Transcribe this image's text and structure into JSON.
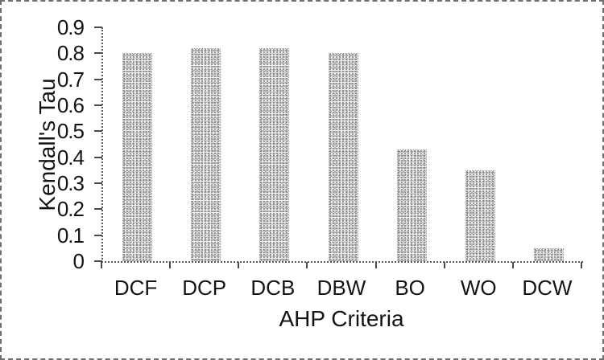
{
  "chart_data": {
    "type": "bar",
    "categories": [
      "DCF",
      "DCP",
      "DCB",
      "DBW",
      "BO",
      "WO",
      "DCW"
    ],
    "values": [
      0.8,
      0.82,
      0.82,
      0.8,
      0.43,
      0.35,
      0.05
    ],
    "xlabel": "AHP Criteria",
    "ylabel": "Kendall's Tau",
    "ylim": [
      0,
      0.9
    ],
    "yticks": [
      0.9,
      0.8,
      0.7,
      0.6,
      0.5,
      0.4,
      0.3,
      0.2,
      0.1,
      0
    ],
    "ytick_labels": [
      "0.9",
      "0.8",
      "0.7",
      "0.6",
      "0.5",
      "0.4",
      "0.3",
      "0.2",
      "0.1",
      "0"
    ],
    "grid": false,
    "legend": "none",
    "bar_fill": "#d9d9d9",
    "bar_texture": "stippled-halftone-scan",
    "axis_color": "#5a5a5a",
    "text_color": "#141414",
    "figure_border": "dashed-scan-edge"
  }
}
